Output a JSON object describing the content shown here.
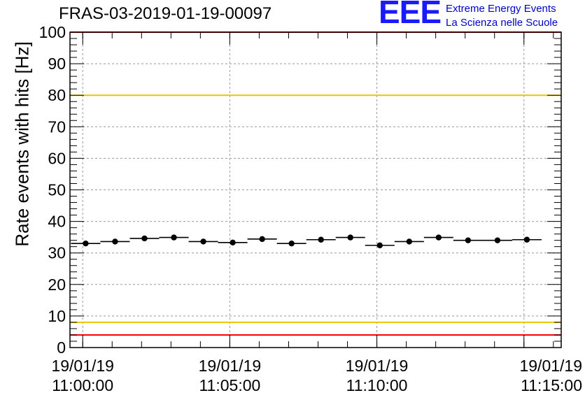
{
  "chart_data": {
    "type": "scatter",
    "title": "FRAS-03-2019-01-19-00097",
    "ylabel": "Rate events with hits [Hz]",
    "xlabel": "",
    "ylim": [
      0,
      100
    ],
    "y_ticks": [
      "0",
      "10",
      "20",
      "30",
      "40",
      "50",
      "60",
      "70",
      "80",
      "90",
      "100"
    ],
    "x_ticks": [
      {
        "line1": "19/01/19",
        "line2": "11:00:00"
      },
      {
        "line1": "19/01/19",
        "line2": "11:05:00"
      },
      {
        "line1": "19/01/19",
        "line2": "11:10:00"
      },
      {
        "line1": "19/01/19",
        "line2": "11:15:00"
      }
    ],
    "series": [
      {
        "x": [
          "11:00:06",
          "11:01:06",
          "11:02:06",
          "11:03:06",
          "11:04:06",
          "11:05:06",
          "11:06:06",
          "11:07:06",
          "11:08:06",
          "11:09:06",
          "11:10:06",
          "11:11:06",
          "11:12:06",
          "11:13:06",
          "11:14:06",
          "11:15:06"
        ],
        "values": [
          33.0,
          33.6,
          34.6,
          34.9,
          33.6,
          33.3,
          34.4,
          33.0,
          34.2,
          34.9,
          32.4,
          33.6,
          34.9,
          34.0,
          34.0,
          34.2
        ],
        "bin_width_seconds": 60,
        "color": "#000000"
      }
    ],
    "reference_lines": [
      {
        "y": 100,
        "color": "#ff0000"
      },
      {
        "y": 80,
        "color": "#e6c800"
      },
      {
        "y": 8,
        "color": "#e6c800"
      },
      {
        "y": 4,
        "color": "#ff0000"
      }
    ],
    "grid": true
  },
  "logo": {
    "mark": "EEE",
    "line1": "Extreme Energy Events",
    "line2": "La Scienza nelle Scuole",
    "color": "#1a1aff"
  }
}
